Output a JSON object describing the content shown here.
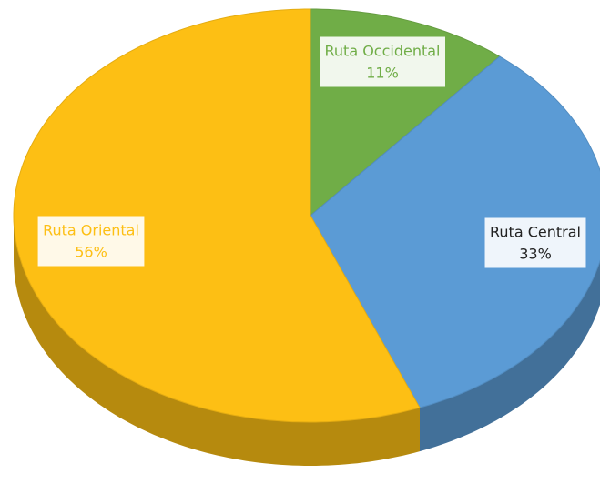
{
  "chart_data": {
    "type": "pie3d",
    "categories": [
      "Ruta Occidental",
      "Ruta Central",
      "Ruta Oriental"
    ],
    "values": [
      11,
      33,
      56
    ],
    "value_labels": [
      "11%",
      "33%",
      "56%"
    ],
    "colors": [
      "#70ad47",
      "#5b9bd5",
      "#fdbf14"
    ]
  }
}
